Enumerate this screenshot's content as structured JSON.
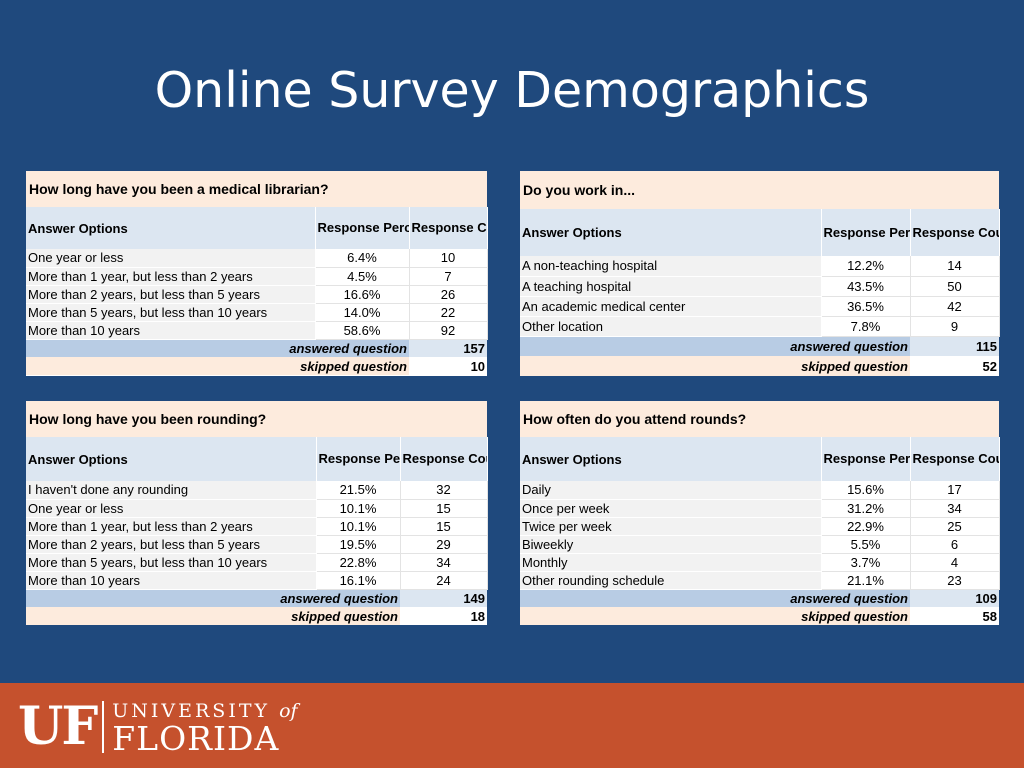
{
  "slide": {
    "title": "Online Survey Demographics"
  },
  "panels": {
    "p1": {
      "question": "How long have you been a medical librarian?",
      "headers": [
        "Answer Options",
        "Response Percent",
        "Response Count"
      ],
      "rows": [
        [
          "One year or less",
          "6.4%",
          "10"
        ],
        [
          "More than 1 year, but less than 2 years",
          "4.5%",
          "7"
        ],
        [
          "More than 2 years, but less than 5 years",
          "16.6%",
          "26"
        ],
        [
          "More than 5 years, but less than 10 years",
          "14.0%",
          "22"
        ],
        [
          "More than 10 years",
          "58.6%",
          "92"
        ]
      ],
      "answered_label": "answered question",
      "answered_value": "157",
      "skipped_label": "skipped question",
      "skipped_value": "10"
    },
    "p2": {
      "question": "Do you work in...",
      "headers": [
        "Answer Options",
        "Response Percent",
        "Response Count"
      ],
      "rows": [
        [
          "A non-teaching hospital",
          "12.2%",
          "14"
        ],
        [
          "A teaching hospital",
          "43.5%",
          "50"
        ],
        [
          "An academic medical center",
          "36.5%",
          "42"
        ],
        [
          "Other location",
          "7.8%",
          "9"
        ]
      ],
      "answered_label": "answered question",
      "answered_value": "115",
      "skipped_label": "skipped question",
      "skipped_value": "52"
    },
    "p3": {
      "question": "How long have you been rounding?",
      "headers": [
        "Answer Options",
        "Response Percent",
        "Response Count"
      ],
      "rows": [
        [
          "I haven't done any rounding",
          "21.5%",
          "32"
        ],
        [
          "One year or less",
          "10.1%",
          "15"
        ],
        [
          "More than 1 year, but less than 2 years",
          "10.1%",
          "15"
        ],
        [
          "More than 2 years, but less than 5 years",
          "19.5%",
          "29"
        ],
        [
          "More than 5 years, but less than 10 years",
          "22.8%",
          "34"
        ],
        [
          "More than 10 years",
          "16.1%",
          "24"
        ]
      ],
      "answered_label": "answered question",
      "answered_value": "149",
      "skipped_label": "skipped question",
      "skipped_value": "18"
    },
    "p4": {
      "question": "How often do you attend rounds?",
      "headers": [
        "Answer Options",
        "Response Percent",
        "Response Count"
      ],
      "rows": [
        [
          "Daily",
          "15.6%",
          "17"
        ],
        [
          "Once per week",
          "31.2%",
          "34"
        ],
        [
          "Twice per week",
          "22.9%",
          "25"
        ],
        [
          "Biweekly",
          "5.5%",
          "6"
        ],
        [
          "Monthly",
          "3.7%",
          "4"
        ],
        [
          "Other rounding schedule",
          "21.1%",
          "23"
        ]
      ],
      "answered_label": "answered question",
      "answered_value": "109",
      "skipped_label": "skipped question",
      "skipped_value": "58"
    }
  },
  "footer": {
    "logo_uf": "UF",
    "logo_university": "UNIVERSITY",
    "logo_of": "of",
    "logo_florida": "FLORIDA"
  },
  "colors": {
    "background": "#1f497d",
    "footer": "#c5512d",
    "question_row": "#fdebdd",
    "header_row": "#dce6f1",
    "answered_row": "#b8cce4"
  }
}
